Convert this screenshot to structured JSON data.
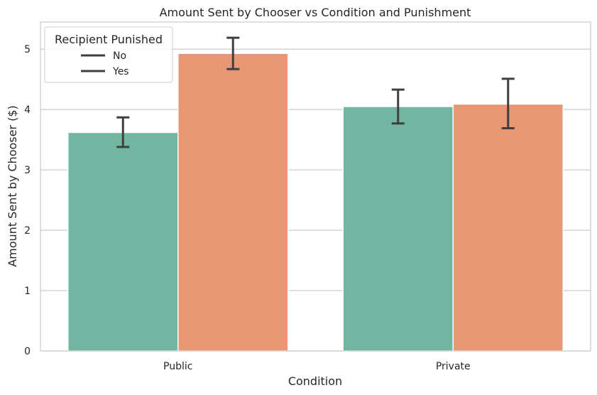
{
  "chart_data": {
    "type": "bar",
    "title": "Amount Sent by Chooser vs Condition and Punishment",
    "xlabel": "Condition",
    "ylabel": "Amount Sent by Chooser ($)",
    "categories": [
      "Public",
      "Private"
    ],
    "ylim": [
      0,
      5.45
    ],
    "yticks": [
      0,
      1,
      2,
      3,
      4,
      5
    ],
    "grid": true,
    "legend": {
      "title": "Recipient Punished",
      "placement": "top-left"
    },
    "series": [
      {
        "name": "No",
        "color": "#72b6a1",
        "values": [
          3.62,
          4.05
        ],
        "ci_low": [
          3.38,
          3.77
        ],
        "ci_high": [
          3.87,
          4.33
        ]
      },
      {
        "name": "Yes",
        "color": "#e99675",
        "values": [
          4.93,
          4.09
        ],
        "ci_low": [
          4.67,
          3.69
        ],
        "ci_high": [
          5.19,
          4.51
        ]
      }
    ]
  }
}
